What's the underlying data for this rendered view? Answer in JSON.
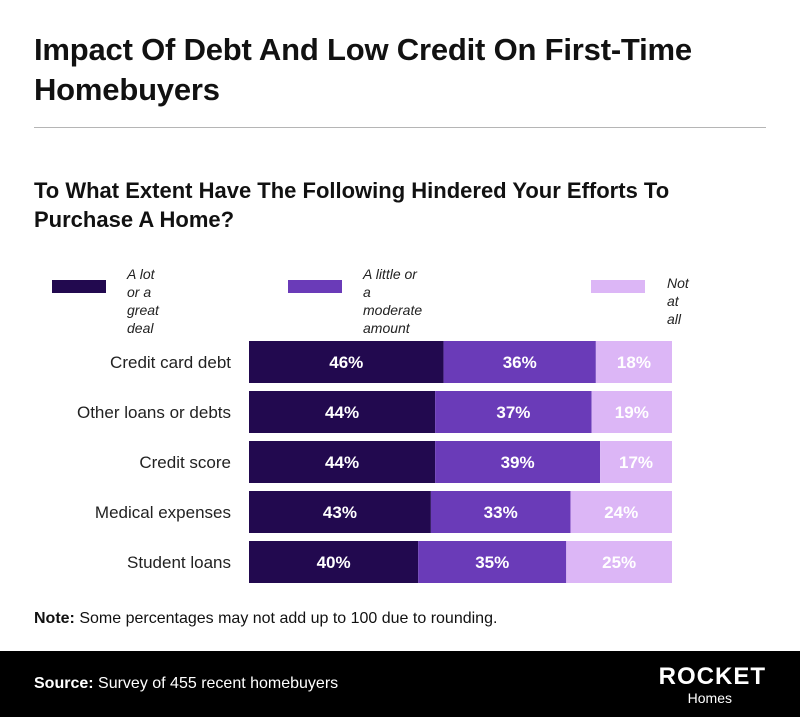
{
  "header": {
    "title": "Impact Of Debt And Low Credit On First-Time Homebuyers"
  },
  "legend": {
    "items": [
      {
        "label": "A lot or a\ngreat deal",
        "color": "#22094f"
      },
      {
        "label": "A little or a\nmoderate amount",
        "color": "#6a3bb8"
      },
      {
        "label": "Not at all",
        "color": "#dcb6f6"
      }
    ]
  },
  "chart_data": {
    "type": "bar",
    "orientation": "horizontal",
    "stacked": true,
    "title": "To What Extent Have The Following Hindered Your Efforts To Purchase A Home?",
    "categories": [
      "Credit card debt",
      "Other loans or debts",
      "Credit score",
      "Medical expenses",
      "Student loans"
    ],
    "series": [
      {
        "name": "A lot or a great deal",
        "color": "#22094f",
        "values": [
          46,
          44,
          44,
          43,
          40
        ]
      },
      {
        "name": "A little or a moderate amount",
        "color": "#6a3bb8",
        "values": [
          36,
          37,
          39,
          33,
          35
        ]
      },
      {
        "name": "Not at all",
        "color": "#dcb6f6",
        "values": [
          18,
          19,
          17,
          24,
          25
        ]
      }
    ],
    "value_suffix": "%",
    "xlim": [
      0,
      100
    ],
    "grid": false,
    "legend": "top"
  },
  "note": {
    "label": "Note:",
    "text": " Some percentages may not add up to 100 due to rounding."
  },
  "footer": {
    "source_label": "Source:",
    "source_text": " Survey of 455 recent homebuyers",
    "logo_main": "ROCKET",
    "logo_sub": "Homes"
  }
}
